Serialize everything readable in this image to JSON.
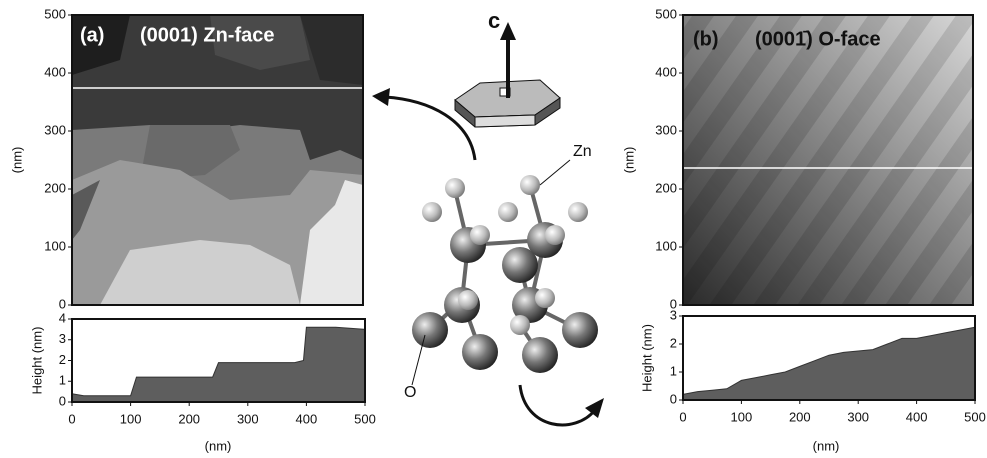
{
  "panel_a": {
    "label": "(a)",
    "title": "(0001) Zn-face",
    "image": {
      "ylabel": "(nm)",
      "ylim": [
        0,
        500
      ],
      "yticks": [
        0,
        100,
        200,
        300,
        400,
        500
      ]
    },
    "profile": {
      "ylabel": "Height (nm)",
      "xlabel": "(nm)",
      "xlim": [
        0,
        500
      ],
      "xticks": [
        0,
        100,
        200,
        300,
        400,
        500
      ],
      "ylim": [
        0,
        4
      ],
      "yticks": [
        0,
        1,
        2,
        3,
        4
      ],
      "x": [
        0,
        20,
        50,
        100,
        110,
        150,
        240,
        250,
        300,
        380,
        395,
        400,
        450,
        500
      ],
      "values": [
        0.4,
        0.3,
        0.3,
        0.3,
        1.2,
        1.2,
        1.2,
        1.9,
        1.9,
        1.9,
        2.0,
        3.6,
        3.6,
        3.5
      ]
    }
  },
  "panel_b": {
    "label": "(b)",
    "title": "(0001̄) O-face",
    "image": {
      "ylabel": "(nm)",
      "ylim": [
        0,
        500
      ],
      "yticks": [
        0,
        100,
        200,
        300,
        400,
        500
      ]
    },
    "profile": {
      "ylabel": "Height (nm)",
      "xlabel": "(nm)",
      "xlim": [
        0,
        500
      ],
      "xticks": [
        0,
        100,
        200,
        300,
        400,
        500
      ],
      "ylim": [
        0,
        3
      ],
      "yticks": [
        0,
        1,
        2,
        3
      ],
      "x": [
        0,
        25,
        50,
        75,
        100,
        125,
        150,
        175,
        200,
        225,
        250,
        275,
        300,
        325,
        350,
        375,
        400,
        425,
        450,
        475,
        500
      ],
      "values": [
        0.2,
        0.3,
        0.35,
        0.4,
        0.7,
        0.8,
        0.9,
        1.0,
        1.2,
        1.4,
        1.6,
        1.7,
        1.75,
        1.8,
        2.0,
        2.2,
        2.2,
        2.3,
        2.4,
        2.5,
        2.6
      ]
    }
  },
  "structure": {
    "axis_label": "c",
    "zn_label": "Zn",
    "o_label": "O"
  }
}
